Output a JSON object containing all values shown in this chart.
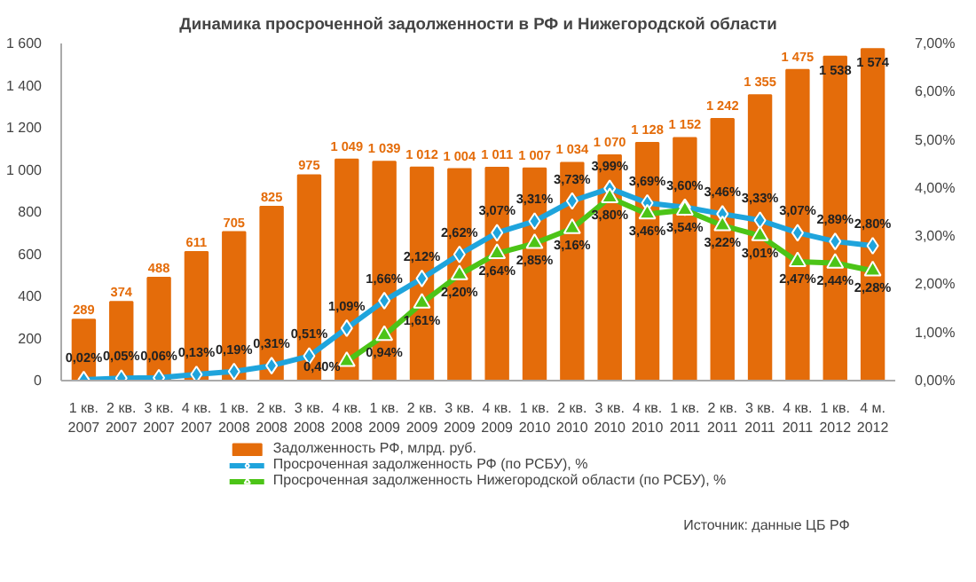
{
  "chart_data": {
    "type": "bar",
    "title": "Динамика просроченной задолженности в РФ и Нижегородской области",
    "categories": [
      "1 кв.\n2007",
      "2 кв.\n2007",
      "3 кв.\n2007",
      "4 кв.\n2007",
      "1 кв.\n2008",
      "2 кв.\n2008",
      "3 кв.\n2008",
      "4 кв.\n2008",
      "1 кв.\n2009",
      "2 кв.\n2009",
      "3 кв.\n2009",
      "4 кв.\n2009",
      "1 кв.\n2010",
      "2 кв.\n2010",
      "3 кв.\n2010",
      "4 кв.\n2010",
      "1 кв.\n2011",
      "2 кв.\n2011",
      "3 кв.\n2011",
      "4 кв.\n2011",
      "1 кв.\n2012",
      "4 м.\n2012"
    ],
    "series": [
      {
        "name": "Задолженность РФ, млрд. руб.",
        "color": "#e46c0a",
        "values": [
          289,
          374,
          488,
          611,
          705,
          825,
          975,
          1049,
          1039,
          1012,
          1004,
          1011,
          1007,
          1034,
          1070,
          1128,
          1152,
          1242,
          1355,
          1475,
          1538,
          1574
        ],
        "value_labels": [
          "289",
          "374",
          "488",
          "611",
          "705",
          "825",
          "975",
          "1 049",
          "1 039",
          "1 012",
          "1 004",
          "1 011",
          "1 007",
          "1 034",
          "1 070",
          "1 128",
          "1 152",
          "1 242",
          "1 355",
          "1 475",
          "1 538",
          "1 574"
        ]
      },
      {
        "name": "Просроченная задолженность РФ (по РСБУ), %",
        "type": "line",
        "axis": "y2",
        "marker": "diamond",
        "color": "#1fa4dc",
        "values": [
          0.02,
          0.05,
          0.06,
          0.13,
          0.19,
          0.31,
          0.51,
          1.09,
          1.66,
          2.12,
          2.62,
          3.07,
          3.31,
          3.73,
          3.99,
          3.69,
          3.6,
          3.46,
          3.33,
          3.07,
          2.89,
          2.8
        ],
        "value_labels": [
          "0,02%",
          "0,05%",
          "0,06%",
          "0,13%",
          "0,19%",
          "0,31%",
          "0,51%",
          "1,09%",
          "1,66%",
          "2,12%",
          "2,62%",
          "3,07%",
          "3,31%",
          "3,73%",
          "3,99%",
          "3,69%",
          "3,60%",
          "3,46%",
          "3,33%",
          "3,07%",
          "2,89%",
          "2,80%"
        ]
      },
      {
        "name": "Просроченная задолженность Нижегородской области (по РСБУ), %",
        "type": "line",
        "axis": "y2",
        "marker": "triangle",
        "color": "#4cc417",
        "values": [
          null,
          null,
          null,
          null,
          null,
          null,
          null,
          0.4,
          0.94,
          1.61,
          2.2,
          2.64,
          2.85,
          3.16,
          3.8,
          3.46,
          3.54,
          3.22,
          3.01,
          2.47,
          2.44,
          2.28
        ],
        "value_labels": [
          null,
          null,
          null,
          null,
          null,
          null,
          null,
          "0,40%",
          "0,94%",
          "1,61%",
          "2,20%",
          "2,64%",
          "2,85%",
          "3,16%",
          "3,80%",
          "3,46%",
          "3,54%",
          "3,22%",
          "3,01%",
          "2,47%",
          "2,44%",
          "2,28%"
        ]
      }
    ],
    "ylim": [
      0,
      1600
    ],
    "yticks": [
      0,
      {
        "value": 200,
        "label": "200"
      },
      {
        "value": 400,
        "label": "400"
      },
      {
        "value": 600,
        "label": "600"
      },
      {
        "value": 800,
        "label": "800"
      },
      {
        "value": 1000,
        "label": "1 000"
      },
      {
        "value": 1200,
        "label": "1 200"
      },
      {
        "value": 1400,
        "label": "1 400"
      },
      {
        "value": 1600,
        "label": "1 600"
      }
    ],
    "y2lim": [
      0,
      7
    ],
    "y2ticks": [
      {
        "value": 0,
        "label": "0,00%"
      },
      {
        "value": 1,
        "label": "1,00%"
      },
      {
        "value": 2,
        "label": "2,00%"
      },
      {
        "value": 3,
        "label": "3,00%"
      },
      {
        "value": 4,
        "label": "4,00%"
      },
      {
        "value": 5,
        "label": "5,00%"
      },
      {
        "value": 6,
        "label": "6,00%"
      },
      {
        "value": 7,
        "label": "7,00%"
      }
    ],
    "grid": false,
    "legend": "bottom",
    "annotations": [
      "Источник: данные ЦБ  РФ"
    ]
  }
}
